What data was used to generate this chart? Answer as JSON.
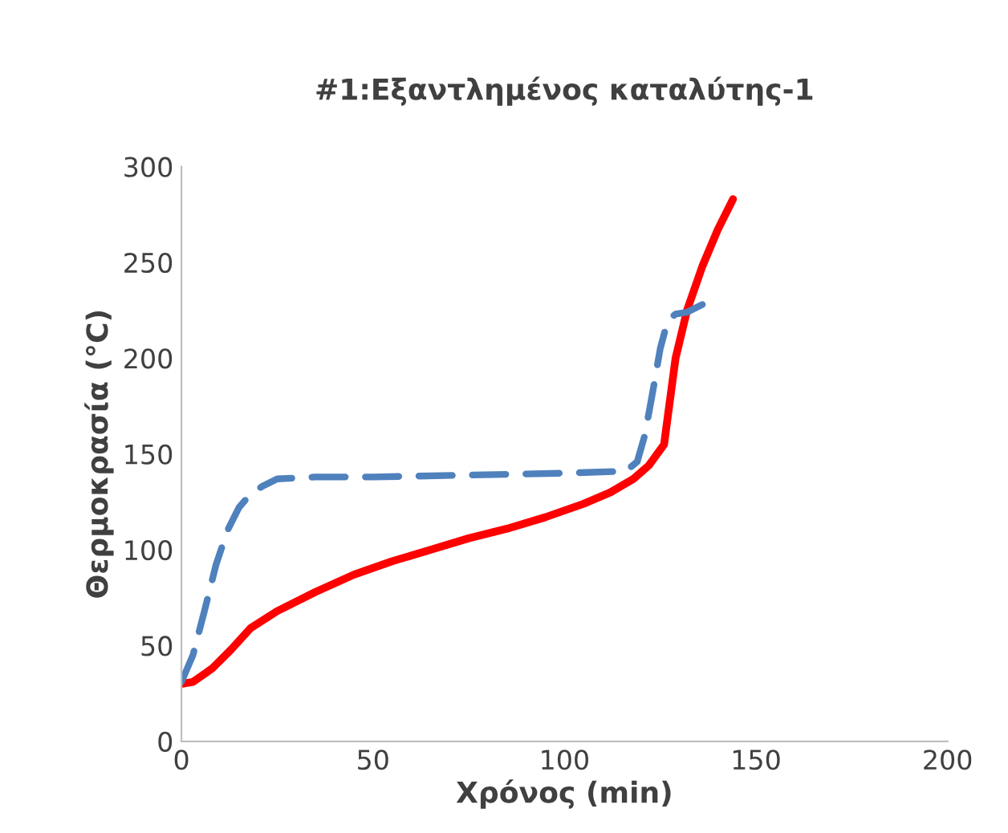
{
  "chart_data": {
    "type": "line",
    "title": "#1:Εξαντλημένος καταλύτης-1",
    "xlabel": "Χρόνος (min)",
    "ylabel": "Θερμοκρασία (°C)",
    "xlim": [
      0,
      200
    ],
    "xticks": [
      0,
      50,
      100,
      150,
      200
    ],
    "ylim": [
      0,
      300
    ],
    "yticks": [
      0,
      50,
      100,
      150,
      200,
      250,
      300
    ],
    "grid": false,
    "legend": false,
    "marker": "none",
    "series": [
      {
        "color": "#ff0000",
        "line_style": "solid",
        "x": [
          0,
          3,
          8,
          13,
          18,
          25,
          35,
          45,
          55,
          65,
          75,
          85,
          95,
          105,
          112,
          118,
          122,
          126,
          127,
          129,
          132,
          136,
          140,
          144
        ],
        "values": [
          30,
          31,
          38,
          48,
          59,
          68,
          78,
          87,
          94,
          100,
          106,
          111,
          117,
          124,
          130,
          137,
          144,
          155,
          170,
          200,
          225,
          248,
          267,
          283
        ]
      },
      {
        "color": "#4f81bd",
        "line_style": "dashed",
        "x": [
          0,
          3,
          6,
          9,
          12,
          15,
          18,
          21,
          25,
          35,
          50,
          75,
          100,
          116,
          119,
          121,
          123,
          125,
          127,
          129,
          132,
          136
        ],
        "values": [
          31,
          45,
          68,
          92,
          110,
          122,
          129,
          133,
          137,
          138,
          138,
          139,
          140,
          141,
          146,
          160,
          182,
          205,
          220,
          223,
          224,
          228
        ]
      }
    ]
  }
}
